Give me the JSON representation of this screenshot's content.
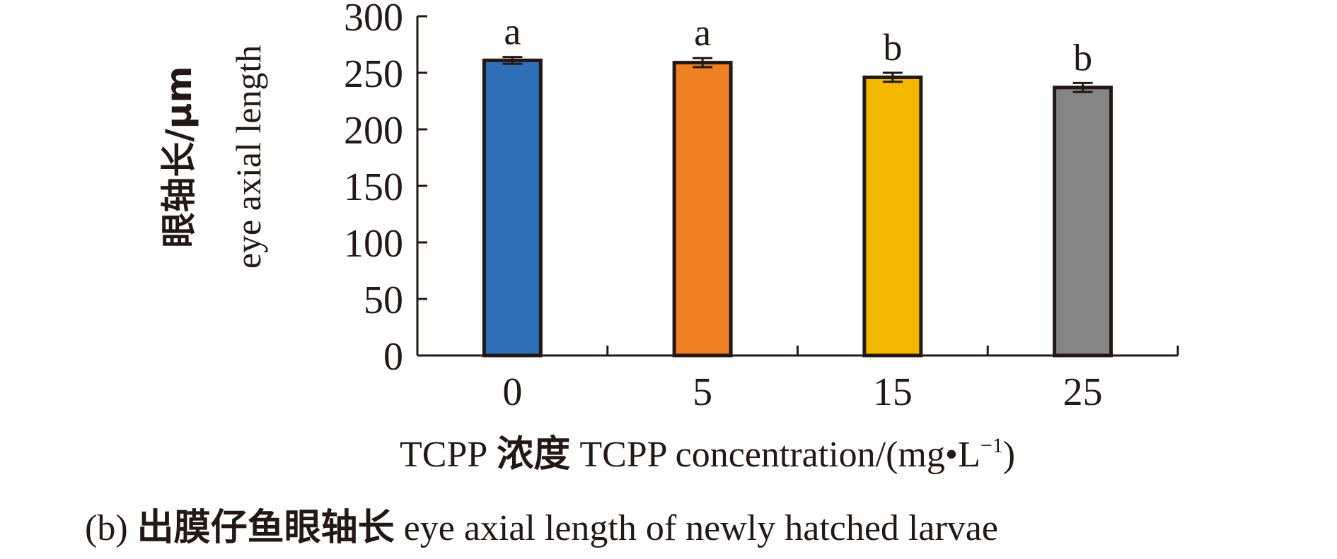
{
  "chart_data": {
    "type": "bar",
    "categories": [
      "0",
      "5",
      "15",
      "25"
    ],
    "series": [
      {
        "values": [
          261,
          259,
          246,
          237
        ],
        "errors": [
          3,
          4,
          4,
          4
        ],
        "colors": [
          "#2e6fb7",
          "#ee7f22",
          "#f5b800",
          "#858585"
        ],
        "sig_letters": [
          "a",
          "a",
          "b",
          "b"
        ]
      }
    ],
    "ylim": [
      0,
      300
    ],
    "yticks": [
      "0",
      "50",
      "100",
      "150",
      "200",
      "250",
      "300"
    ],
    "ylabel_cn": "眼轴长/μm",
    "ylabel_en": "eye axial length",
    "xlabel_prefix": "TCPP",
    "xlabel_cn": "浓度",
    "xlabel_en": "TCPP concentration/(mg",
    "xlabel_unit_dot": "•",
    "xlabel_unit_L": "L",
    "xlabel_unit_sup": "−1",
    "xlabel_close": ")",
    "caption_prefix": "(b)",
    "caption_cn": "出膜仔鱼眼轴长",
    "caption_en": "eye axial length of newly hatched  larvae",
    "grid": false
  }
}
